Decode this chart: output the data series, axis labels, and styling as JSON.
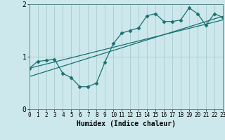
{
  "xlabel": "Humidex (Indice chaleur)",
  "bg_color": "#cce8ec",
  "grid_color": "#aacccc",
  "line_color": "#1a7070",
  "xlim": [
    0,
    23
  ],
  "ylim": [
    0,
    2
  ],
  "xticks": [
    0,
    1,
    2,
    3,
    4,
    5,
    6,
    7,
    8,
    9,
    10,
    11,
    12,
    13,
    14,
    15,
    16,
    17,
    18,
    19,
    20,
    21,
    22,
    23
  ],
  "yticks": [
    0,
    1,
    2
  ],
  "curve1_x": [
    0,
    1,
    2,
    3,
    4,
    5,
    6,
    7,
    8,
    9,
    10,
    11,
    12,
    13,
    14,
    15,
    16,
    17,
    18,
    19,
    20,
    21,
    22,
    23
  ],
  "curve1_y": [
    0.78,
    0.91,
    0.93,
    0.95,
    0.68,
    0.6,
    0.43,
    0.43,
    0.5,
    0.9,
    1.25,
    1.45,
    1.5,
    1.55,
    1.78,
    1.82,
    1.67,
    1.67,
    1.7,
    1.93,
    1.82,
    1.6,
    1.82,
    1.75
  ],
  "curve2_x": [
    0,
    23
  ],
  "curve2_y": [
    0.62,
    1.77
  ],
  "curve3_x": [
    0,
    23
  ],
  "curve3_y": [
    0.78,
    1.7
  ]
}
